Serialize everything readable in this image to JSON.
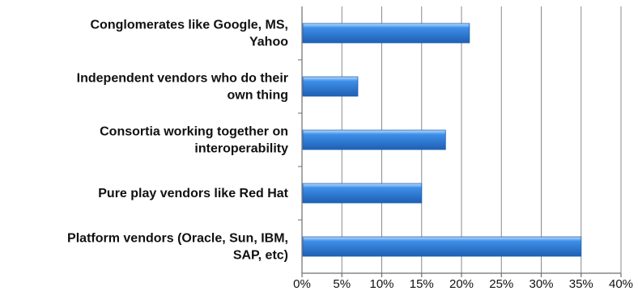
{
  "chart_data": {
    "type": "bar",
    "orientation": "horizontal",
    "categories": [
      [
        "Conglomerates like Google, MS,",
        "Yahoo"
      ],
      [
        "Independent vendors who do their",
        "own thing"
      ],
      [
        "Consortia working together on",
        "interoperability"
      ],
      [
        "Pure play vendors like Red Hat"
      ],
      [
        "Platform vendors (Oracle, Sun, IBM,",
        "SAP, etc)"
      ]
    ],
    "values": [
      21,
      7,
      18,
      15,
      35
    ],
    "xlim": [
      0,
      40
    ],
    "xticks": [
      0,
      5,
      10,
      15,
      20,
      25,
      30,
      35,
      40
    ],
    "tick_suffix": "%",
    "grid": true,
    "bar_color": "#3d8fe8",
    "bar_highlight": "#bfe0ff",
    "bar_edge": "#1f5fb3"
  }
}
